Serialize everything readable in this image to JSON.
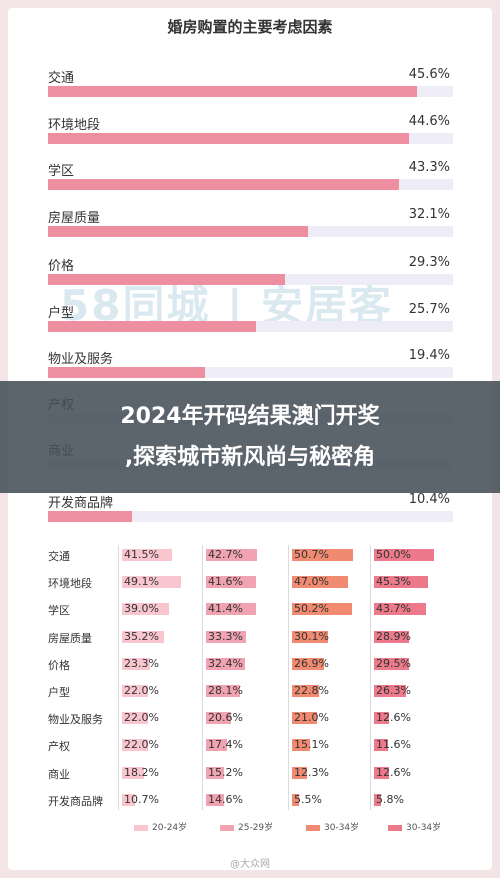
{
  "banner": {
    "line1": "2024年开码结果澳门开奖",
    "line2": ",探索城市新风尚与秘密角"
  },
  "colors": {
    "bar_main": "#ee8fa1",
    "track": "#eeedf7",
    "c20_24": "#f9c6cf",
    "c25_29": "#f2a3b2",
    "c30_34": "#f08a70",
    "c30_34b": "#ec7a8b"
  },
  "chart_data": [
    {
      "type": "bar",
      "title": "婚房购置的主要考虑因素",
      "categories": [
        "交通",
        "环境地段",
        "学区",
        "房屋质量",
        "价格",
        "户型",
        "物业及服务",
        "产权",
        "商业",
        "开发商品牌"
      ],
      "values": [
        45.6,
        44.6,
        43.3,
        32.1,
        29.3,
        25.7,
        19.4,
        null,
        null,
        10.4
      ],
      "value_labels": [
        "45.6%",
        "44.6%",
        "43.3%",
        "32.1%",
        "29.3%",
        "25.7%",
        "19.4%",
        "",
        "",
        "10.4%"
      ],
      "xlim": [
        0,
        50
      ]
    },
    {
      "type": "table",
      "categories": [
        "交通",
        "环境地段",
        "学区",
        "房屋质量",
        "价格",
        "户型",
        "物业及服务",
        "产权",
        "商业",
        "开发商品牌"
      ],
      "series": [
        {
          "name": "20-24岁",
          "values": [
            41.5,
            49.1,
            39.0,
            35.2,
            23.3,
            22.0,
            22.0,
            22.0,
            18.2,
            10.7
          ],
          "labels": [
            "41.5%",
            "49.1%",
            "39.0%",
            "35.2%",
            "23.3%",
            "22.0%",
            "22.0%",
            "22.0%",
            "18.2%",
            "10.7%"
          ]
        },
        {
          "name": "25-29岁",
          "values": [
            42.7,
            41.6,
            41.4,
            33.3,
            32.4,
            28.1,
            20.6,
            17.4,
            15.2,
            14.6
          ],
          "labels": [
            "42.7%",
            "41.6%",
            "41.4%",
            "33.3%",
            "32.4%",
            "28.1%",
            "20.6%",
            "17.4%",
            "15.2%",
            "14.6%"
          ]
        },
        {
          "name": "30-34岁",
          "values": [
            50.7,
            47.0,
            50.2,
            30.1,
            26.9,
            22.8,
            21.0,
            15.1,
            12.3,
            5.5
          ],
          "labels": [
            "50.7%",
            "47.0%",
            "50.2%",
            "30.1%",
            "26.9%",
            "22.8%",
            "21.0%",
            "15.1%",
            "12.3%",
            "5.5%"
          ]
        },
        {
          "name": "30-34岁",
          "values": [
            50.0,
            45.3,
            43.7,
            28.9,
            29.5,
            26.3,
            12.6,
            11.6,
            12.6,
            5.8
          ],
          "labels": [
            "50.0%",
            "45.3%",
            "43.7%",
            "28.9%",
            "29.5%",
            "26.3%",
            "12.6%",
            "11.6%",
            "12.6%",
            "5.8%"
          ]
        }
      ],
      "xlim": [
        0,
        55
      ]
    }
  ]
}
